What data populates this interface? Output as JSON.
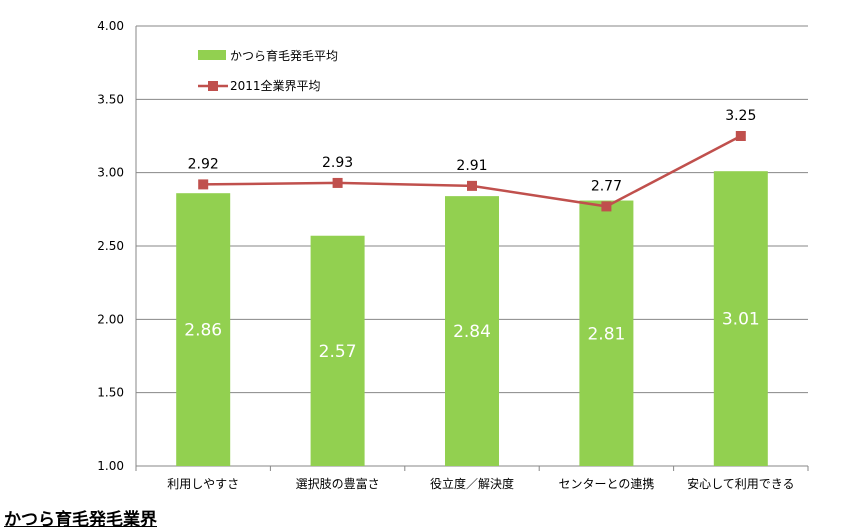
{
  "chart_data": {
    "type": "bar",
    "categories": [
      "利用しやすさ",
      "選択肢の豊富さ",
      "役立度／解決度",
      "センターとの連携",
      "安心して利用できる"
    ],
    "series": [
      {
        "name": "かつら育毛発毛平均",
        "type": "bar",
        "color": "#92d050",
        "values": [
          2.86,
          2.57,
          2.84,
          2.81,
          3.01
        ],
        "labels": [
          "2.86",
          "2.57",
          "2.84",
          "2.81",
          "3.01"
        ]
      },
      {
        "name": "2011全業界平均",
        "type": "line",
        "color": "#c0504d",
        "values": [
          2.92,
          2.93,
          2.91,
          2.77,
          3.25
        ],
        "labels": [
          "2.92",
          "2.93",
          "2.91",
          "2.77",
          "3.25"
        ]
      }
    ],
    "ylim": [
      1.0,
      4.0
    ],
    "yticks": [
      "1.00",
      "1.50",
      "2.00",
      "2.50",
      "3.00",
      "3.50",
      "4.00"
    ],
    "grid": true,
    "legend_position": "top-left"
  },
  "section_title": "かつら育毛発毛業界"
}
